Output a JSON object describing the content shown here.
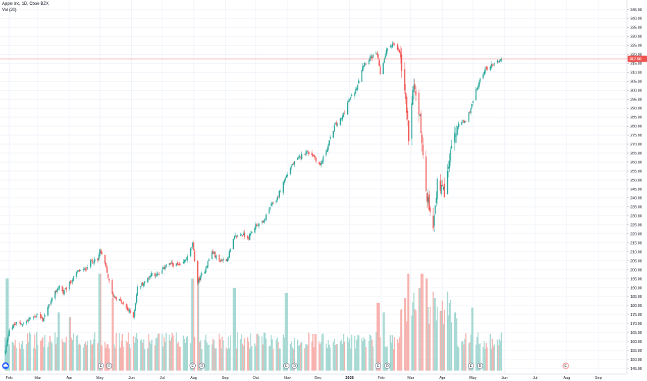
{
  "legend": {
    "symbol_line": "Apple Inc, 1D, Cboe BZX",
    "volume_line": "Vol (20)"
  },
  "colors": {
    "up": "#26a69a",
    "down": "#ef5350",
    "up_volume": "#a5d8d2",
    "down_volume": "#f7b2ae",
    "grid": "#f0f3fa",
    "price_line": "#ef5350",
    "event_marker": "#6a7185",
    "future_event": "#ef5350"
  },
  "chart_data": {
    "type": "candlestick",
    "title": "Apple Inc, 1D, Cboe BZX",
    "indicator": "Vol (20)",
    "last_price": "317.50",
    "y_axis": {
      "ticks": [
        "345.00",
        "340.00",
        "335.00",
        "330.00",
        "325.00",
        "320.00",
        "315.00",
        "310.00",
        "305.00",
        "300.00",
        "295.00",
        "290.00",
        "285.00",
        "280.00",
        "275.00",
        "270.00",
        "265.00",
        "260.00",
        "255.00",
        "250.00",
        "245.00",
        "240.00",
        "235.00",
        "230.00",
        "225.00",
        "220.00",
        "215.00",
        "210.00",
        "205.00",
        "200.00",
        "195.00",
        "190.00",
        "185.00",
        "180.00",
        "175.00",
        "170.00",
        "165.00",
        "160.00",
        "155.00",
        "150.00",
        "145.00"
      ],
      "ylim": [
        143,
        348
      ]
    },
    "x_axis": {
      "labels": [
        "Feb",
        "Mar",
        "Apr",
        "May",
        "Jun",
        "Jul",
        "Aug",
        "Sep",
        "Oct",
        "Nov",
        "Dec",
        "2020",
        "Feb",
        "Mar",
        "Apr",
        "May",
        "Jun",
        "Jul",
        "Aug",
        "Sep"
      ]
    },
    "price_path": [
      {
        "d": "2019-01-28",
        "p": 154
      },
      {
        "d": "2019-02-01",
        "p": 167
      },
      {
        "d": "2019-02-08",
        "p": 170
      },
      {
        "d": "2019-02-15",
        "p": 170
      },
      {
        "d": "2019-02-22",
        "p": 173
      },
      {
        "d": "2019-03-01",
        "p": 175
      },
      {
        "d": "2019-03-06",
        "p": 172
      },
      {
        "d": "2019-03-12",
        "p": 180
      },
      {
        "d": "2019-03-18",
        "p": 187
      },
      {
        "d": "2019-03-22",
        "p": 191
      },
      {
        "d": "2019-03-26",
        "p": 187
      },
      {
        "d": "2019-04-01",
        "p": 192
      },
      {
        "d": "2019-04-09",
        "p": 199
      },
      {
        "d": "2019-04-16",
        "p": 200
      },
      {
        "d": "2019-04-23",
        "p": 205
      },
      {
        "d": "2019-04-29",
        "p": 205
      },
      {
        "d": "2019-05-01",
        "p": 211
      },
      {
        "d": "2019-05-06",
        "p": 203
      },
      {
        "d": "2019-05-13",
        "p": 186
      },
      {
        "d": "2019-05-20",
        "p": 183
      },
      {
        "d": "2019-05-28",
        "p": 178
      },
      {
        "d": "2019-06-03",
        "p": 174
      },
      {
        "d": "2019-06-07",
        "p": 190
      },
      {
        "d": "2019-06-14",
        "p": 193
      },
      {
        "d": "2019-06-21",
        "p": 198
      },
      {
        "d": "2019-06-28",
        "p": 197
      },
      {
        "d": "2019-07-05",
        "p": 203
      },
      {
        "d": "2019-07-12",
        "p": 203
      },
      {
        "d": "2019-07-19",
        "p": 202
      },
      {
        "d": "2019-07-26",
        "p": 207
      },
      {
        "d": "2019-07-31",
        "p": 214
      },
      {
        "d": "2019-08-05",
        "p": 193
      },
      {
        "d": "2019-08-12",
        "p": 200
      },
      {
        "d": "2019-08-19",
        "p": 210
      },
      {
        "d": "2019-08-26",
        "p": 205
      },
      {
        "d": "2019-09-03",
        "p": 206
      },
      {
        "d": "2019-09-10",
        "p": 218
      },
      {
        "d": "2019-09-17",
        "p": 220
      },
      {
        "d": "2019-09-24",
        "p": 218
      },
      {
        "d": "2019-10-01",
        "p": 225
      },
      {
        "d": "2019-10-08",
        "p": 226
      },
      {
        "d": "2019-10-15",
        "p": 235
      },
      {
        "d": "2019-10-22",
        "p": 240
      },
      {
        "d": "2019-10-29",
        "p": 250
      },
      {
        "d": "2019-11-05",
        "p": 258
      },
      {
        "d": "2019-11-12",
        "p": 262
      },
      {
        "d": "2019-11-19",
        "p": 266
      },
      {
        "d": "2019-11-26",
        "p": 264
      },
      {
        "d": "2019-12-03",
        "p": 258
      },
      {
        "d": "2019-12-10",
        "p": 268
      },
      {
        "d": "2019-12-17",
        "p": 280
      },
      {
        "d": "2019-12-24",
        "p": 284
      },
      {
        "d": "2019-12-31",
        "p": 294
      },
      {
        "d": "2020-01-07",
        "p": 300
      },
      {
        "d": "2020-01-14",
        "p": 314
      },
      {
        "d": "2020-01-21",
        "p": 318
      },
      {
        "d": "2020-01-28",
        "p": 320
      },
      {
        "d": "2020-01-31",
        "p": 309
      },
      {
        "d": "2020-02-06",
        "p": 322
      },
      {
        "d": "2020-02-12",
        "p": 326
      },
      {
        "d": "2020-02-19",
        "p": 321
      },
      {
        "d": "2020-02-24",
        "p": 298
      },
      {
        "d": "2020-02-28",
        "p": 275
      },
      {
        "d": "2020-03-04",
        "p": 302
      },
      {
        "d": "2020-03-10",
        "p": 285
      },
      {
        "d": "2020-03-16",
        "p": 242
      },
      {
        "d": "2020-03-23",
        "p": 226
      },
      {
        "d": "2020-03-27",
        "p": 248
      },
      {
        "d": "2020-04-03",
        "p": 242
      },
      {
        "d": "2020-04-09",
        "p": 266
      },
      {
        "d": "2020-04-17",
        "p": 282
      },
      {
        "d": "2020-04-24",
        "p": 282
      },
      {
        "d": "2020-04-30",
        "p": 292
      },
      {
        "d": "2020-05-06",
        "p": 303
      },
      {
        "d": "2020-05-12",
        "p": 311
      },
      {
        "d": "2020-05-19",
        "p": 314
      },
      {
        "d": "2020-05-29",
        "p": 317.5
      }
    ],
    "volume_spikes": [
      {
        "d": "2019-01-30",
        "v": 0.95
      },
      {
        "d": "2019-03-22",
        "v": 0.6
      },
      {
        "d": "2019-04-01",
        "v": 0.55
      },
      {
        "d": "2019-05-01",
        "v": 1.0
      },
      {
        "d": "2019-05-13",
        "v": 0.75
      },
      {
        "d": "2019-07-31",
        "v": 0.95
      },
      {
        "d": "2019-08-05",
        "v": 0.9
      },
      {
        "d": "2019-09-10",
        "v": 0.85
      },
      {
        "d": "2019-10-31",
        "v": 0.8
      },
      {
        "d": "2020-01-29",
        "v": 0.7
      },
      {
        "d": "2020-02-03",
        "v": 0.6
      },
      {
        "d": "2020-02-24",
        "v": 0.75
      },
      {
        "d": "2020-02-28",
        "v": 1.0
      },
      {
        "d": "2020-03-09",
        "v": 0.85
      },
      {
        "d": "2020-03-12",
        "v": 1.0
      },
      {
        "d": "2020-03-16",
        "v": 0.95
      },
      {
        "d": "2020-03-24",
        "v": 0.75
      },
      {
        "d": "2020-05-01",
        "v": 0.65
      }
    ],
    "last_date": "2020-05-29",
    "axis_start": "2019-01-23",
    "axis_end": "2020-09-29",
    "events": [
      {
        "d": "2019-05-02",
        "label": "E"
      },
      {
        "d": "2019-05-10",
        "label": "D"
      },
      {
        "d": "2019-07-31",
        "label": "E"
      },
      {
        "d": "2019-08-09",
        "label": "D"
      },
      {
        "d": "2019-10-31",
        "label": "E"
      },
      {
        "d": "2019-11-08",
        "label": "D"
      },
      {
        "d": "2020-01-29",
        "label": "E"
      },
      {
        "d": "2020-02-07",
        "label": "D"
      },
      {
        "d": "2020-04-29",
        "label": "E"
      },
      {
        "d": "2020-05-08",
        "label": "D"
      },
      {
        "d": "2020-07-31",
        "label": "E",
        "future": true
      }
    ]
  }
}
